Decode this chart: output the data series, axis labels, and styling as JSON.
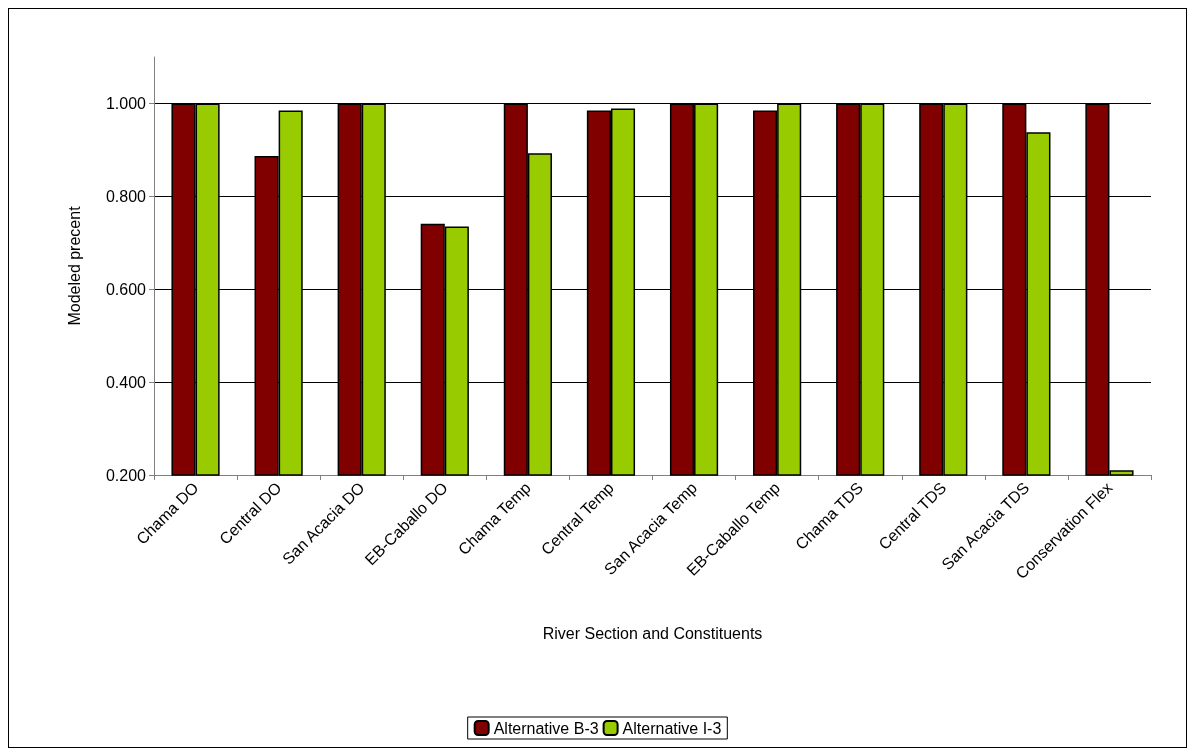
{
  "chart_data": {
    "type": "bar",
    "xlabel": "River Section and Constituents",
    "ylabel": "Modeled precent",
    "categories": [
      "Chama DO",
      "Central DO",
      "San Acacia DO",
      "EB-Caballo DO",
      "Chama Temp",
      "Central Temp",
      "San Acacia Temp",
      "EB-Caballo Temp",
      "Chama TDS",
      "Central TDS",
      "San Acacia TDS",
      "Conservation Flex"
    ],
    "series": [
      {
        "name": "Alternative B-3",
        "color": "#800000",
        "values": [
          1.0,
          0.887,
          1.0,
          0.741,
          1.0,
          0.985,
          1.0,
          0.985,
          1.0,
          1.0,
          1.0,
          1.0
        ]
      },
      {
        "name": "Alternative I-3",
        "color": "#99cc00",
        "values": [
          1.0,
          0.985,
          1.0,
          0.735,
          0.893,
          0.989,
          1.0,
          1.0,
          1.0,
          1.0,
          0.938,
          0.21
        ]
      }
    ],
    "ylim": [
      0.2,
      1.1
    ],
    "yticks": [
      {
        "value": 0.2,
        "label": "0.200"
      },
      {
        "value": 0.4,
        "label": "0.400"
      },
      {
        "value": 0.6,
        "label": "0.600"
      },
      {
        "value": 0.8,
        "label": "0.800"
      },
      {
        "value": 1.0,
        "label": "1.000"
      }
    ],
    "grid": "y",
    "legend": "bottom"
  }
}
